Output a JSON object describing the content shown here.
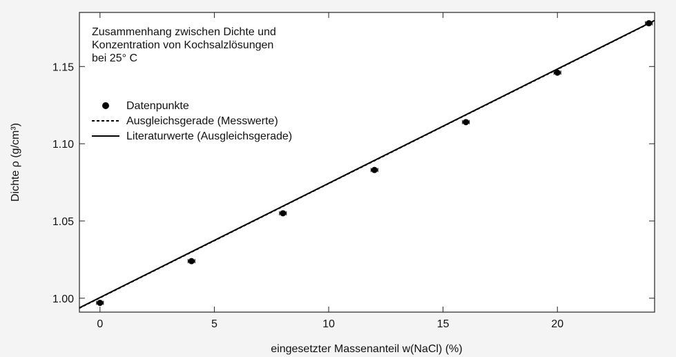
{
  "chart_data": {
    "type": "scatter",
    "title": [
      "Zusammenhang zwischen Dichte und",
      "Konzentration von Kochsalzlösungen",
      "bei 25° C"
    ],
    "xlabel": "eingesetzter Massenanteil w(NaCl) (%)",
    "ylabel": "Dichte ρ (g/cm³)",
    "xlim": [
      -0.9,
      24.25
    ],
    "xticks": [
      0,
      5,
      10,
      15,
      20
    ],
    "ylim": [
      0.991,
      1.185
    ],
    "yticks": [
      {
        "value": 1,
        "label": "1.00"
      },
      1.05,
      {
        "value": 1.1,
        "label": "1.10"
      },
      1.15
    ],
    "legend": "upper left",
    "series": [
      {
        "name": "Datenpunkte",
        "color": "#000000",
        "style": "marker",
        "x": [
          0,
          4,
          8,
          12,
          16,
          20,
          24
        ],
        "values": [
          0.997,
          1.024,
          1.055,
          1.083,
          1.114,
          1.146,
          1.178
        ],
        "xerr": [
          0.15,
          0.15,
          0.15,
          0.15,
          0.15,
          0.15,
          0.15
        ]
      },
      {
        "name": "Ausgleichsgerade (Messwerte)",
        "color": "#000000",
        "style": "dashed",
        "x": [
          -0.9,
          24.25
        ],
        "values": [
          0.9935,
          1.1795
        ]
      },
      {
        "name": "Literaturwerte (Ausgleichsgerade)",
        "color": "#000000",
        "style": "solid",
        "x": [
          -0.9,
          24.25
        ],
        "values": [
          0.9938,
          1.1798
        ]
      }
    ]
  }
}
